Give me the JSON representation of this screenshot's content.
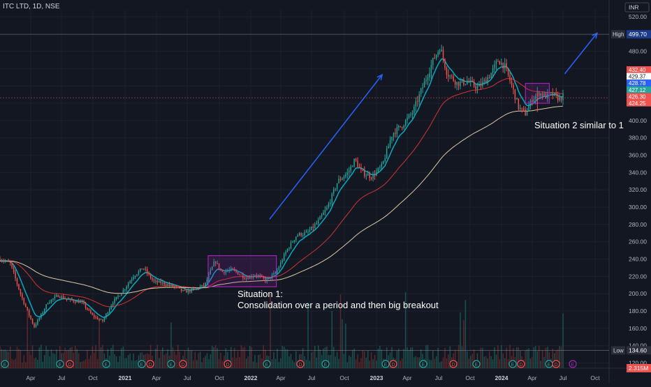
{
  "header": {
    "symbol_title": "ITC LTD, 1D, NSE",
    "currency": "INR"
  },
  "colors": {
    "background": "#131722",
    "grid": "#1e222d",
    "axis_text": "#b2b5be",
    "candle_up": "#26a69a",
    "candle_down": "#ef5350",
    "ema_fast": "#00bcd4",
    "ema_mid": "#e53935",
    "ema_slow": "#f5deb3",
    "annotation_box": "#9c27b0",
    "arrow": "#2962ff",
    "high_low_label": "#2a2e39",
    "high_label_bg": "#1e3a8a"
  },
  "chart_data": {
    "type": "candlestick",
    "title": "ITC LTD, 1D, NSE",
    "ylim": [
      114,
      528
    ],
    "y_ticks": [
      "520.00",
      "500.00",
      "480.00",
      "460.00",
      "440.00",
      "420.00",
      "400.00",
      "380.00",
      "360.00",
      "340.00",
      "320.00",
      "300.00",
      "280.00",
      "260.00",
      "240.00",
      "220.00",
      "200.00",
      "180.00",
      "160.00",
      "140.00",
      "120.00"
    ],
    "y_tick_values": [
      520,
      500,
      480,
      460,
      440,
      420,
      400,
      380,
      360,
      340,
      320,
      300,
      280,
      260,
      240,
      220,
      200,
      180,
      160,
      140,
      120
    ],
    "x_ticks": [
      {
        "label": "Apr",
        "bold": false
      },
      {
        "label": "Jul",
        "bold": false
      },
      {
        "label": "Oct",
        "bold": false
      },
      {
        "label": "2021",
        "bold": true
      },
      {
        "label": "Apr",
        "bold": false
      },
      {
        "label": "Jul",
        "bold": false
      },
      {
        "label": "Oct",
        "bold": false
      },
      {
        "label": "2022",
        "bold": true
      },
      {
        "label": "Apr",
        "bold": false
      },
      {
        "label": "Jul",
        "bold": false
      },
      {
        "label": "Oct",
        "bold": false
      },
      {
        "label": "2023",
        "bold": true
      },
      {
        "label": "Apr",
        "bold": false
      },
      {
        "label": "Jul",
        "bold": false
      },
      {
        "label": "Oct",
        "bold": false
      },
      {
        "label": "2024",
        "bold": true
      },
      {
        "label": "Apr",
        "bold": false
      },
      {
        "label": "Jul",
        "bold": false
      },
      {
        "label": "Oct",
        "bold": false
      }
    ],
    "price_path": [
      {
        "t": 0,
        "p": 240
      },
      {
        "t": 3,
        "p": 235
      },
      {
        "t": 6,
        "p": 200
      },
      {
        "t": 8,
        "p": 180
      },
      {
        "t": 10,
        "p": 162
      },
      {
        "t": 12,
        "p": 175
      },
      {
        "t": 14,
        "p": 190
      },
      {
        "t": 17,
        "p": 198
      },
      {
        "t": 20,
        "p": 193
      },
      {
        "t": 24,
        "p": 190
      },
      {
        "t": 27,
        "p": 175
      },
      {
        "t": 30,
        "p": 168
      },
      {
        "t": 33,
        "p": 190
      },
      {
        "t": 36,
        "p": 203
      },
      {
        "t": 39,
        "p": 220
      },
      {
        "t": 42,
        "p": 230
      },
      {
        "t": 45,
        "p": 214
      },
      {
        "t": 48,
        "p": 212
      },
      {
        "t": 51,
        "p": 208
      },
      {
        "t": 54,
        "p": 202
      },
      {
        "t": 57,
        "p": 205
      },
      {
        "t": 60,
        "p": 210
      },
      {
        "t": 63,
        "p": 238
      },
      {
        "t": 65,
        "p": 225
      },
      {
        "t": 68,
        "p": 228
      },
      {
        "t": 72,
        "p": 218
      },
      {
        "t": 75,
        "p": 222
      },
      {
        "t": 78,
        "p": 215
      },
      {
        "t": 81,
        "p": 225
      },
      {
        "t": 84,
        "p": 250
      },
      {
        "t": 87,
        "p": 268
      },
      {
        "t": 90,
        "p": 270
      },
      {
        "t": 93,
        "p": 282
      },
      {
        "t": 96,
        "p": 300
      },
      {
        "t": 99,
        "p": 330
      },
      {
        "t": 102,
        "p": 340
      },
      {
        "t": 104,
        "p": 355
      },
      {
        "t": 106,
        "p": 340
      },
      {
        "t": 109,
        "p": 335
      },
      {
        "t": 112,
        "p": 348
      },
      {
        "t": 115,
        "p": 385
      },
      {
        "t": 118,
        "p": 395
      },
      {
        "t": 121,
        "p": 410
      },
      {
        "t": 124,
        "p": 440
      },
      {
        "t": 127,
        "p": 470
      },
      {
        "t": 129,
        "p": 485
      },
      {
        "t": 131,
        "p": 455
      },
      {
        "t": 134,
        "p": 443
      },
      {
        "t": 137,
        "p": 445
      },
      {
        "t": 140,
        "p": 438
      },
      {
        "t": 142,
        "p": 445
      },
      {
        "t": 144,
        "p": 455
      },
      {
        "t": 146,
        "p": 470
      },
      {
        "t": 148,
        "p": 462
      },
      {
        "t": 150,
        "p": 440
      },
      {
        "t": 152,
        "p": 415
      },
      {
        "t": 154,
        "p": 408
      },
      {
        "t": 156,
        "p": 425
      },
      {
        "t": 158,
        "p": 432
      },
      {
        "t": 160,
        "p": 428
      },
      {
        "t": 162,
        "p": 430
      },
      {
        "t": 164,
        "p": 425
      },
      {
        "t": 165,
        "p": 428
      }
    ],
    "moving_averages": [
      "fast",
      "mid",
      "slow"
    ],
    "price_labels": [
      {
        "text": "432.40",
        "bg": "#ef5350",
        "fg": "#ffffff",
        "value": 432.4
      },
      {
        "text": "429.37",
        "bg": "#ffffff",
        "fg": "#131722",
        "value": 429.37
      },
      {
        "text": "428.78",
        "bg": "#2962ff",
        "fg": "#ffffff",
        "value": 428.78
      },
      {
        "text": "427.12",
        "bg": "#26a69a",
        "fg": "#ffffff",
        "value": 427.12
      },
      {
        "text": "426.30",
        "bg": "#ef5350",
        "fg": "#ffffff",
        "value": 426.3
      },
      {
        "text": "424.25",
        "bg": "#ef5350",
        "fg": "#ffffff",
        "value": 424.25
      }
    ],
    "high": {
      "label": "High",
      "value_text": "499.70",
      "value": 499.7
    },
    "low": {
      "label": "Low",
      "value_text": "134.60",
      "value": 134.6
    },
    "volume_label": "2.315M",
    "annotations": [
      {
        "text": "Situation 1:"
      },
      {
        "text": "Consolidation over a period and then big breakout"
      },
      {
        "text": "Situation 2 similar to 1"
      }
    ]
  }
}
